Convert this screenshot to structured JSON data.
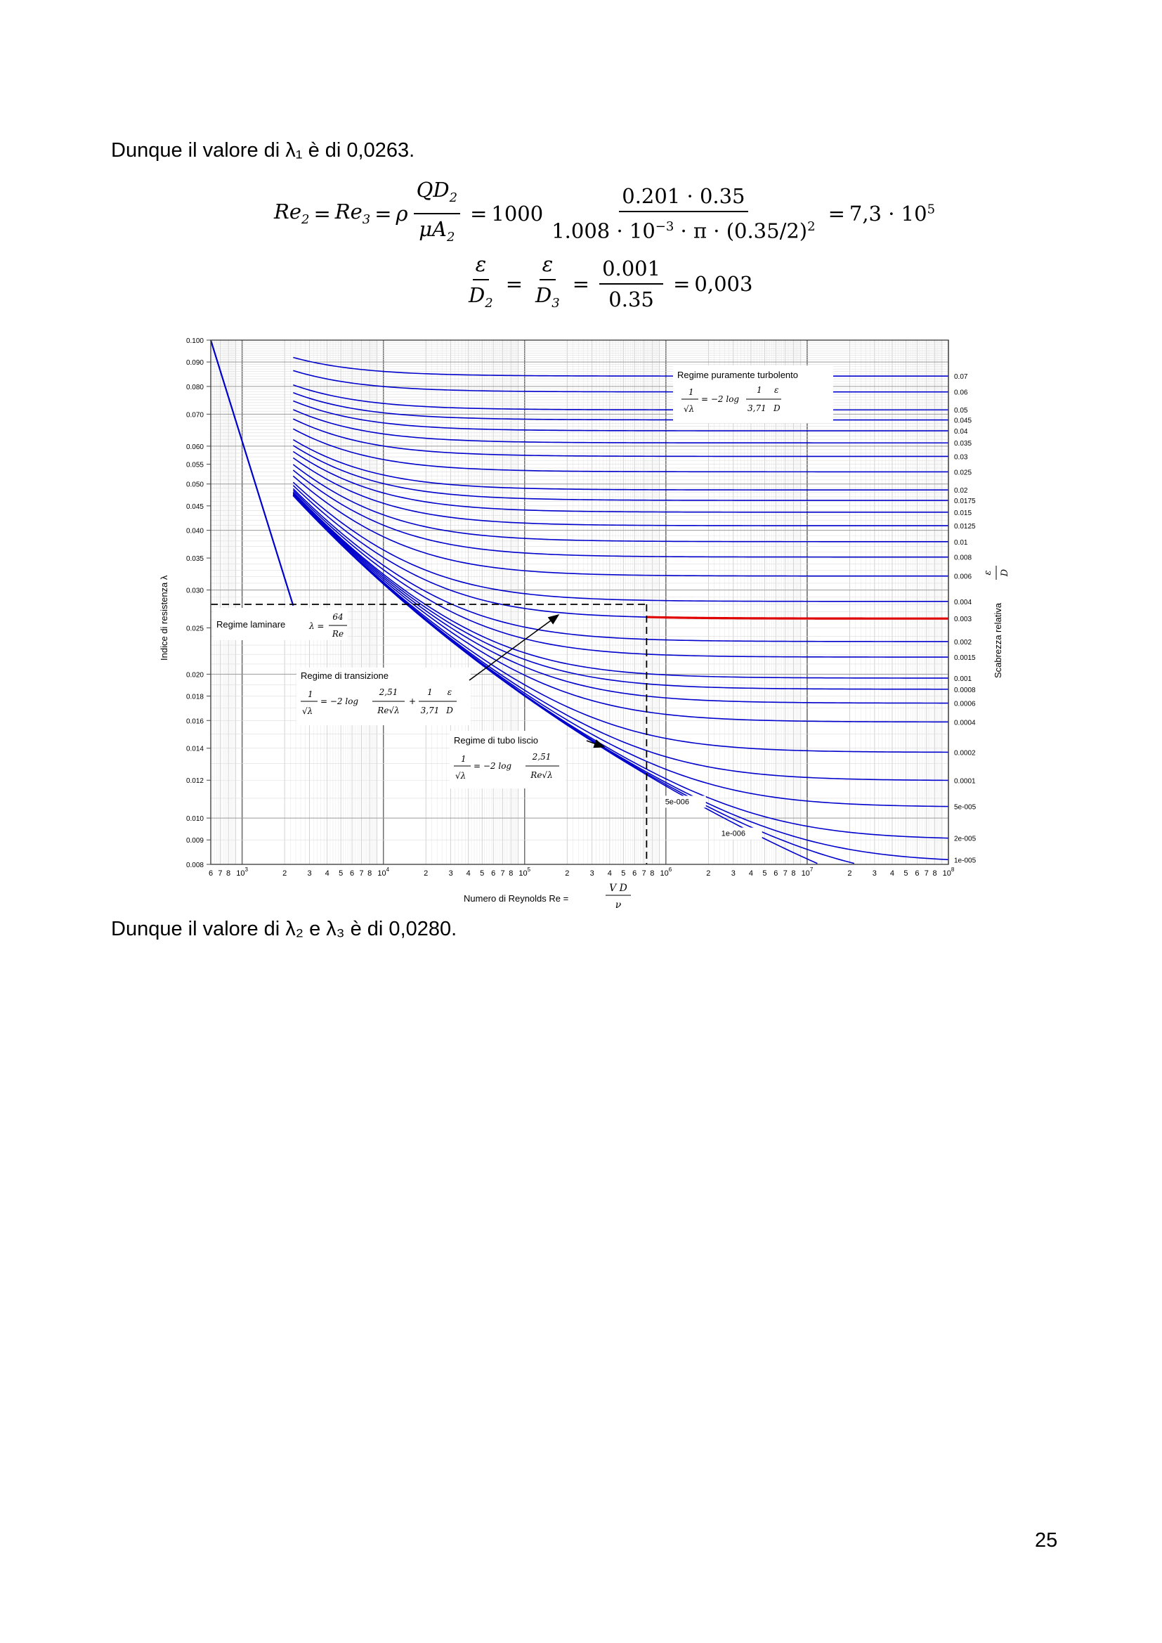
{
  "text": {
    "para1": "Dunque il valore di λ₁ è di 0,0263.",
    "para2": "Dunque il valore di λ₂ e λ₃ è di 0,0280.",
    "page_number": "25"
  },
  "equation1": {
    "lhs1": "Re",
    "lhs1_sub": "2",
    "lhs2": "Re",
    "lhs2_sub": "3",
    "rho": "ρ",
    "frac1_num": "QD",
    "frac1_num_sub": "2",
    "frac1_den": "μA",
    "frac1_den_sub": "2",
    "coef": "1000",
    "frac2_num": "0.201 · 0.35",
    "frac2_den": "1.008 · 10",
    "frac2_den_exp": "−3",
    "frac2_den_rest": " · π · (0.35/2)",
    "frac2_den_exp2": "2",
    "result": "7,3 · 10",
    "result_exp": "5"
  },
  "equation2": {
    "eps": "ε",
    "den1": "D",
    "den1_sub": "2",
    "den2": "D",
    "den2_sub": "3",
    "frac3_num": "0.001",
    "frac3_den": "0.35",
    "result": "0,003"
  },
  "chart_data": {
    "type": "line",
    "title": "",
    "xlabel": "Numero di Reynolds  Re =",
    "xlabel_formula_num": "V D",
    "xlabel_formula_den": "ν",
    "ylabel": "Indice di resistenza  λ",
    "ylabel_right": "Scabrezza relativa",
    "ylabel_right_formula_num": "ε",
    "ylabel_right_formula_den": "D",
    "xscale": "log",
    "yscale": "log",
    "xlim": [
      600,
      100000000
    ],
    "ylim": [
      0.008,
      0.1
    ],
    "y_ticks": [
      "0.100",
      "0.090",
      "0.080",
      "0.070",
      "0.060",
      "0.055",
      "0.050",
      "0.045",
      "0.040",
      "0.035",
      "0.030",
      "0.025",
      "0.020",
      "0.018",
      "0.016",
      "0.014",
      "0.012",
      "0.010",
      "0.009",
      "0.008"
    ],
    "x_tick_labels": [
      {
        "x": 600,
        "label": "6"
      },
      {
        "x": 700,
        "label": "7"
      },
      {
        "x": 800,
        "label": "8"
      },
      {
        "x": 1000,
        "label": "10",
        "exp": "3"
      },
      {
        "x": 2000,
        "label": "2"
      },
      {
        "x": 3000,
        "label": "3"
      },
      {
        "x": 4000,
        "label": "4"
      },
      {
        "x": 5000,
        "label": "5"
      },
      {
        "x": 6000,
        "label": "6"
      },
      {
        "x": 7000,
        "label": "7"
      },
      {
        "x": 8000,
        "label": "8"
      },
      {
        "x": 10000,
        "label": "10",
        "exp": "4"
      },
      {
        "x": 20000,
        "label": "2"
      },
      {
        "x": 30000,
        "label": "3"
      },
      {
        "x": 40000,
        "label": "4"
      },
      {
        "x": 50000,
        "label": "5"
      },
      {
        "x": 60000,
        "label": "6"
      },
      {
        "x": 70000,
        "label": "7"
      },
      {
        "x": 80000,
        "label": "8"
      },
      {
        "x": 100000,
        "label": "10",
        "exp": "5"
      },
      {
        "x": 200000,
        "label": "2"
      },
      {
        "x": 300000,
        "label": "3"
      },
      {
        "x": 400000,
        "label": "4"
      },
      {
        "x": 500000,
        "label": "5"
      },
      {
        "x": 600000,
        "label": "6"
      },
      {
        "x": 700000,
        "label": "7"
      },
      {
        "x": 800000,
        "label": "8"
      },
      {
        "x": 1000000,
        "label": "10",
        "exp": "6"
      },
      {
        "x": 2000000,
        "label": "2"
      },
      {
        "x": 3000000,
        "label": "3"
      },
      {
        "x": 4000000,
        "label": "4"
      },
      {
        "x": 5000000,
        "label": "5"
      },
      {
        "x": 6000000,
        "label": "6"
      },
      {
        "x": 7000000,
        "label": "7"
      },
      {
        "x": 8000000,
        "label": "8"
      },
      {
        "x": 10000000,
        "label": "10",
        "exp": "7"
      },
      {
        "x": 20000000,
        "label": "2"
      },
      {
        "x": 30000000,
        "label": "3"
      },
      {
        "x": 40000000,
        "label": "4"
      },
      {
        "x": 50000000,
        "label": "5"
      },
      {
        "x": 60000000,
        "label": "6"
      },
      {
        "x": 70000000,
        "label": "7"
      },
      {
        "x": 80000000,
        "label": "8"
      },
      {
        "x": 100000000,
        "label": "10",
        "exp": "8"
      }
    ],
    "roughness_labels": [
      "0.07",
      "0.06",
      "0.05",
      "0.045",
      "0.04",
      "0.035",
      "0.03",
      "0.025",
      "0.02",
      "0.0175",
      "0.015",
      "0.0125",
      "0.01",
      "0.008",
      "0.006",
      "0.004",
      "0.003",
      "0.002",
      "0.0015",
      "0.001",
      "0.0008",
      "0.0006",
      "0.0004",
      "0.0002",
      "0.0001",
      "5e-005",
      "2e-005",
      "1e-005"
    ],
    "roughness_values": [
      0.07,
      0.06,
      0.05,
      0.045,
      0.04,
      0.035,
      0.03,
      0.025,
      0.02,
      0.0175,
      0.015,
      0.0125,
      0.01,
      0.008,
      0.006,
      0.004,
      0.003,
      0.002,
      0.0015,
      0.001,
      0.0008,
      0.0006,
      0.0004,
      0.0002,
      0.0001,
      5e-05,
      2e-05,
      1e-05,
      5e-06,
      1e-06
    ],
    "inner_curve_labels": [
      {
        "eps": 5e-06,
        "label": "5e-006"
      },
      {
        "eps": 1e-06,
        "label": "1e-006"
      }
    ],
    "turbulent_start_re": 2300,
    "laminar": {
      "re_range": [
        600,
        2300
      ],
      "formula": "λ = 64/Re"
    },
    "highlight": {
      "eps_over_d": 0.003,
      "re": 730000,
      "lambda": 0.028,
      "color": "#e00000"
    },
    "annotations": {
      "turbulent": "Regime puramente turbolento",
      "laminar": "Regime laminare",
      "transition": "Regime di transizione",
      "smooth": "Regime di tubo liscio"
    },
    "formulas": {
      "turb_lhs_num": "1",
      "turb_lhs_den": "√λ",
      "turb_mid": "= −2 log",
      "turb_num": "1",
      "turb_den": "3,71",
      "turb_eps": "ε",
      "turb_d": "D",
      "lam_lhs": "λ =",
      "lam_num": "64",
      "lam_den": "Re",
      "trans_lhs_num": "1",
      "trans_lhs_den": "√λ",
      "trans_mid": "= −2 log",
      "trans_a_num": "2,51",
      "trans_a_den": "Re√λ",
      "trans_plus": "+",
      "trans_b_num": "1",
      "trans_b_den": "3,71",
      "trans_eps": "ε",
      "trans_d": "D",
      "smooth_lhs_num": "1",
      "smooth_lhs_den": "√λ",
      "smooth_mid": "= −2 log",
      "smooth_num": "2,51",
      "smooth_den": "Re√λ"
    },
    "colors": {
      "curves": "#0000cc",
      "highlight": "#e00000",
      "grid_minor": "#c8c8c8",
      "grid_major": "#707070"
    }
  }
}
